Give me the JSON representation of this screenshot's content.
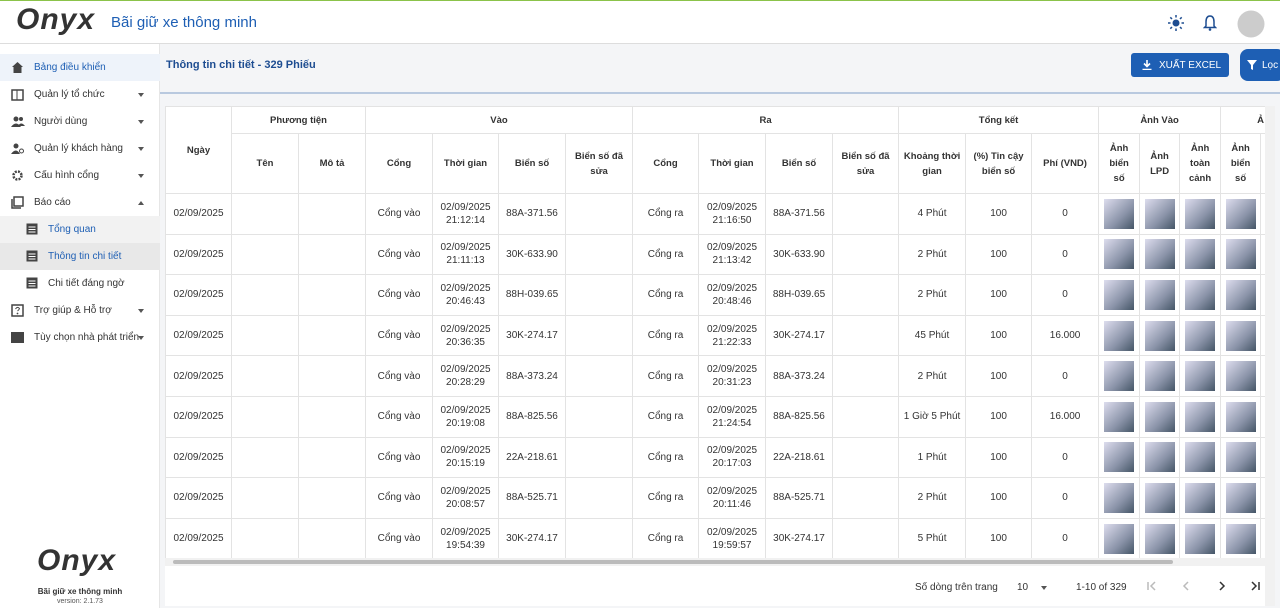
{
  "header": {
    "logo": "Onyx",
    "subtitle": "Bãi giữ xe thông minh"
  },
  "sidebar": {
    "items": [
      "Bảng điều khiển",
      "Quản lý tổ chức",
      "Người dùng",
      "Quản lý khách hàng",
      "Cấu hình cổng",
      "Báo cáo"
    ],
    "report_items": [
      "Tổng quan",
      "Thông tin chi tiết",
      "Chi tiết đáng ngờ"
    ],
    "bottom_items": [
      "Trợ giúp & Hỗ trợ",
      "Tùy chọn nhà phát triển"
    ],
    "footer": {
      "logo": "Onyx",
      "subtitle": "Bãi giữ xe thông minh",
      "version": "version: 2.1.73"
    }
  },
  "main": {
    "title": "Thông tin chi tiết - 329 Phiếu",
    "export_button": "XUẤT EXCEL",
    "filter_button": "Lọc"
  },
  "table": {
    "groups": [
      "Ngày",
      "Phương tiện",
      "Vào",
      "Ra",
      "Tổng kết",
      "Ảnh Vào",
      "Ả"
    ],
    "columns": [
      "Tên",
      "Mô tả",
      "Cổng",
      "Thời gian",
      "Biển số",
      "Biển số đã sửa",
      "Cổng",
      "Thời gian",
      "Biển số",
      "Biển số đã sửa",
      "Khoảng thời gian",
      "(%) Tin cậy biển số",
      "Phí (VND)",
      "Ảnh biển số",
      "Ảnh LPD",
      "Ảnh toàn cảnh",
      "Ảnh biển số"
    ],
    "rows": [
      {
        "date": "02/09/2025",
        "in_gate": "Cổng vào",
        "in_time": "02/09/2025 21:12:14",
        "in_plate": "88A-371.56",
        "out_gate": "Cổng ra",
        "out_time": "02/09/2025 21:16:50",
        "out_plate": "88A-371.56",
        "duration": "4 Phút",
        "confidence": "100",
        "fee": "0"
      },
      {
        "date": "02/09/2025",
        "in_gate": "Cổng vào",
        "in_time": "02/09/2025 21:11:13",
        "in_plate": "30K-633.90",
        "out_gate": "Cổng ra",
        "out_time": "02/09/2025 21:13:42",
        "out_plate": "30K-633.90",
        "duration": "2 Phút",
        "confidence": "100",
        "fee": "0"
      },
      {
        "date": "02/09/2025",
        "in_gate": "Cổng vào",
        "in_time": "02/09/2025 20:46:43",
        "in_plate": "88H-039.65",
        "out_gate": "Cổng ra",
        "out_time": "02/09/2025 20:48:46",
        "out_plate": "88H-039.65",
        "duration": "2 Phút",
        "confidence": "100",
        "fee": "0"
      },
      {
        "date": "02/09/2025",
        "in_gate": "Cổng vào",
        "in_time": "02/09/2025 20:36:35",
        "in_plate": "30K-274.17",
        "out_gate": "Cổng ra",
        "out_time": "02/09/2025 21:22:33",
        "out_plate": "30K-274.17",
        "duration": "45 Phút",
        "confidence": "100",
        "fee": "16.000"
      },
      {
        "date": "02/09/2025",
        "in_gate": "Cổng vào",
        "in_time": "02/09/2025 20:28:29",
        "in_plate": "88A-373.24",
        "out_gate": "Cổng ra",
        "out_time": "02/09/2025 20:31:23",
        "out_plate": "88A-373.24",
        "duration": "2 Phút",
        "confidence": "100",
        "fee": "0"
      },
      {
        "date": "02/09/2025",
        "in_gate": "Cổng vào",
        "in_time": "02/09/2025 20:19:08",
        "in_plate": "88A-825.56",
        "out_gate": "Cổng ra",
        "out_time": "02/09/2025 21:24:54",
        "out_plate": "88A-825.56",
        "duration": "1 Giờ 5 Phút",
        "confidence": "100",
        "fee": "16.000"
      },
      {
        "date": "02/09/2025",
        "in_gate": "Cổng vào",
        "in_time": "02/09/2025 20:15:19",
        "in_plate": "22A-218.61",
        "out_gate": "Cổng ra",
        "out_time": "02/09/2025 20:17:03",
        "out_plate": "22A-218.61",
        "duration": "1 Phút",
        "confidence": "100",
        "fee": "0"
      },
      {
        "date": "02/09/2025",
        "in_gate": "Cổng vào",
        "in_time": "02/09/2025 20:08:57",
        "in_plate": "88A-525.71",
        "out_gate": "Cổng ra",
        "out_time": "02/09/2025 20:11:46",
        "out_plate": "88A-525.71",
        "duration": "2 Phút",
        "confidence": "100",
        "fee": "0"
      },
      {
        "date": "02/09/2025",
        "in_gate": "Cổng vào",
        "in_time": "02/09/2025 19:54:39",
        "in_plate": "30K-274.17",
        "out_gate": "Cổng ra",
        "out_time": "02/09/2025 19:59:57",
        "out_plate": "30K-274.17",
        "duration": "5 Phút",
        "confidence": "100",
        "fee": "0"
      }
    ]
  },
  "pagination": {
    "rows_label": "Số dòng trên trang",
    "rows_per_page": "10",
    "range": "1-10 of 329"
  }
}
